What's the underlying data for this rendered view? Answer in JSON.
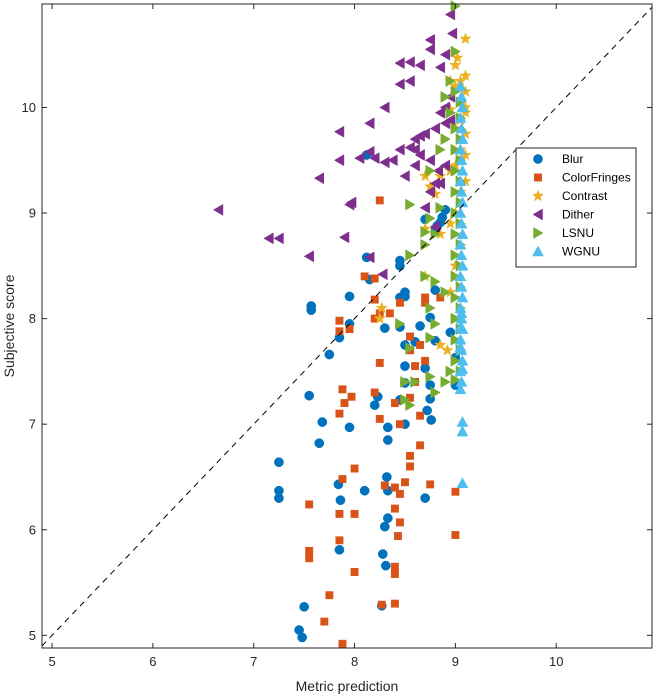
{
  "chart_data": {
    "type": "scatter",
    "xlabel": "Metric prediction",
    "ylabel": "Subjective score",
    "xlim": [
      4.9,
      10.95
    ],
    "ylim": [
      4.88,
      10.98
    ],
    "xticks": [
      5,
      6,
      7,
      8,
      9,
      10
    ],
    "yticks": [
      5,
      6,
      7,
      8,
      9,
      10
    ],
    "grid": false,
    "legend_position": "right",
    "reference_line": "y = x (dashed)",
    "series": [
      {
        "name": "Blur",
        "color": "#0072BD",
        "marker": "circle",
        "points": [
          [
            7.48,
            4.98
          ],
          [
            7.45,
            5.05
          ],
          [
            7.5,
            5.27
          ],
          [
            8.27,
            5.28
          ],
          [
            8.31,
            5.66
          ],
          [
            8.28,
            5.77
          ],
          [
            7.85,
            5.81
          ],
          [
            8.3,
            6.03
          ],
          [
            8.33,
            6.11
          ],
          [
            7.86,
            6.28
          ],
          [
            7.25,
            6.3
          ],
          [
            7.25,
            6.37
          ],
          [
            7.84,
            6.43
          ],
          [
            8.1,
            6.37
          ],
          [
            8.33,
            6.37
          ],
          [
            8.32,
            6.5
          ],
          [
            8.7,
            6.3
          ],
          [
            7.25,
            6.64
          ],
          [
            7.65,
            6.82
          ],
          [
            8.33,
            6.85
          ],
          [
            7.68,
            7.02
          ],
          [
            7.95,
            6.97
          ],
          [
            8.33,
            6.97
          ],
          [
            8.5,
            7.0
          ],
          [
            8.76,
            7.04
          ],
          [
            7.55,
            7.27
          ],
          [
            8.2,
            7.18
          ],
          [
            8.23,
            7.26
          ],
          [
            8.45,
            7.23
          ],
          [
            8.72,
            7.13
          ],
          [
            8.75,
            7.24
          ],
          [
            8.5,
            7.39
          ],
          [
            8.75,
            7.37
          ],
          [
            9.0,
            7.37
          ],
          [
            9.0,
            7.63
          ],
          [
            8.7,
            7.53
          ],
          [
            7.75,
            7.66
          ],
          [
            8.5,
            7.55
          ],
          [
            8.5,
            7.75
          ],
          [
            8.6,
            7.78
          ],
          [
            8.8,
            7.79
          ],
          [
            7.85,
            7.82
          ],
          [
            8.3,
            7.91
          ],
          [
            8.45,
            7.92
          ],
          [
            8.65,
            7.93
          ],
          [
            8.75,
            8.01
          ],
          [
            8.95,
            7.87
          ],
          [
            7.95,
            7.95
          ],
          [
            7.57,
            8.08
          ],
          [
            7.57,
            8.12
          ],
          [
            7.95,
            8.21
          ],
          [
            8.45,
            8.2
          ],
          [
            8.5,
            8.21
          ],
          [
            8.5,
            8.25
          ],
          [
            8.8,
            8.27
          ],
          [
            8.15,
            8.37
          ],
          [
            8.45,
            8.5
          ],
          [
            8.45,
            8.55
          ],
          [
            8.12,
            8.58
          ],
          [
            8.8,
            8.84
          ],
          [
            8.82,
            8.88
          ],
          [
            8.87,
            8.96
          ],
          [
            8.9,
            9.03
          ],
          [
            8.85,
            8.91
          ],
          [
            8.7,
            8.94
          ],
          [
            8.12,
            9.55
          ]
        ]
      },
      {
        "name": "ColorFringes",
        "color": "#D95319",
        "marker": "square",
        "points": [
          [
            7.88,
            4.92
          ],
          [
            8.4,
            5.3
          ],
          [
            8.27,
            5.29
          ],
          [
            8.4,
            5.58
          ],
          [
            8.4,
            5.65
          ],
          [
            7.7,
            5.13
          ],
          [
            7.75,
            5.38
          ],
          [
            7.55,
            5.73
          ],
          [
            7.55,
            5.8
          ],
          [
            7.55,
            6.24
          ],
          [
            8.0,
            5.6
          ],
          [
            7.85,
            5.9
          ],
          [
            8.43,
            5.94
          ],
          [
            8.45,
            6.07
          ],
          [
            7.85,
            6.15
          ],
          [
            8.0,
            6.15
          ],
          [
            8.4,
            6.2
          ],
          [
            8.45,
            6.34
          ],
          [
            8.3,
            6.42
          ],
          [
            8.4,
            6.4
          ],
          [
            8.5,
            6.45
          ],
          [
            9.0,
            6.36
          ],
          [
            9.0,
            5.95
          ],
          [
            8.75,
            6.43
          ],
          [
            8.0,
            6.58
          ],
          [
            7.88,
            6.48
          ],
          [
            8.55,
            6.6
          ],
          [
            8.55,
            6.7
          ],
          [
            8.65,
            6.8
          ],
          [
            8.25,
            7.05
          ],
          [
            8.45,
            7.0
          ],
          [
            8.65,
            7.08
          ],
          [
            7.85,
            7.1
          ],
          [
            7.9,
            7.2
          ],
          [
            7.97,
            7.26
          ],
          [
            7.88,
            7.33
          ],
          [
            8.2,
            7.3
          ],
          [
            8.4,
            7.2
          ],
          [
            8.55,
            7.25
          ],
          [
            8.6,
            7.4
          ],
          [
            8.6,
            7.55
          ],
          [
            8.7,
            7.6
          ],
          [
            8.25,
            7.58
          ],
          [
            8.55,
            7.7
          ],
          [
            8.65,
            7.75
          ],
          [
            8.55,
            7.83
          ],
          [
            7.85,
            7.88
          ],
          [
            7.95,
            7.9
          ],
          [
            7.85,
            7.98
          ],
          [
            8.2,
            8.0
          ],
          [
            8.25,
            8.05
          ],
          [
            8.2,
            8.18
          ],
          [
            8.35,
            8.05
          ],
          [
            8.45,
            8.15
          ],
          [
            8.7,
            8.15
          ],
          [
            8.7,
            8.2
          ],
          [
            8.85,
            8.2
          ],
          [
            8.2,
            8.38
          ],
          [
            8.1,
            8.4
          ],
          [
            8.25,
            9.12
          ]
        ]
      },
      {
        "name": "Contrast",
        "color": "#EDB120",
        "marker": "star",
        "points": [
          [
            8.25,
            8.0
          ],
          [
            8.27,
            8.1
          ],
          [
            8.7,
            8.4
          ],
          [
            8.85,
            7.75
          ],
          [
            8.92,
            7.7
          ],
          [
            8.95,
            8.25
          ],
          [
            9.0,
            8.5
          ],
          [
            8.85,
            8.8
          ],
          [
            8.95,
            8.9
          ],
          [
            8.7,
            8.85
          ],
          [
            8.8,
            9.18
          ],
          [
            8.75,
            9.25
          ],
          [
            8.7,
            9.35
          ],
          [
            8.85,
            9.35
          ],
          [
            8.95,
            9.4
          ],
          [
            9.0,
            9.45
          ],
          [
            9.05,
            9.5
          ],
          [
            9.1,
            9.55
          ],
          [
            9.05,
            9.6
          ],
          [
            9.1,
            9.75
          ],
          [
            9.0,
            9.8
          ],
          [
            9.05,
            9.88
          ],
          [
            9.1,
            9.95
          ],
          [
            8.95,
            9.98
          ],
          [
            9.1,
            10.0
          ],
          [
            9.05,
            10.05
          ],
          [
            9.1,
            10.15
          ],
          [
            9.0,
            10.2
          ],
          [
            9.05,
            10.25
          ],
          [
            9.1,
            10.3
          ],
          [
            9.0,
            10.4
          ],
          [
            9.02,
            10.47
          ],
          [
            9.1,
            10.65
          ],
          [
            8.95,
            10.25
          ],
          [
            9.05,
            9.2
          ],
          [
            9.1,
            9.3
          ],
          [
            9.0,
            9.0
          ]
        ]
      },
      {
        "name": "Dither",
        "color": "#7E2F8E",
        "marker": "triangle-left",
        "points": [
          [
            6.65,
            9.03
          ],
          [
            7.15,
            8.76
          ],
          [
            7.25,
            8.76
          ],
          [
            7.55,
            8.59
          ],
          [
            7.9,
            8.77
          ],
          [
            8.15,
            8.58
          ],
          [
            8.28,
            8.42
          ],
          [
            7.65,
            9.33
          ],
          [
            7.95,
            9.08
          ],
          [
            7.97,
            9.1
          ],
          [
            7.85,
            9.5
          ],
          [
            8.05,
            9.52
          ],
          [
            8.2,
            9.52
          ],
          [
            8.15,
            9.58
          ],
          [
            8.3,
            9.48
          ],
          [
            8.38,
            9.5
          ],
          [
            8.45,
            9.6
          ],
          [
            8.55,
            9.62
          ],
          [
            8.6,
            9.7
          ],
          [
            8.65,
            9.73
          ],
          [
            8.7,
            9.75
          ],
          [
            8.8,
            9.8
          ],
          [
            8.9,
            9.85
          ],
          [
            8.95,
            9.88
          ],
          [
            8.6,
            9.6
          ],
          [
            8.75,
            9.5
          ],
          [
            8.83,
            9.4
          ],
          [
            8.9,
            9.45
          ],
          [
            8.75,
            9.2
          ],
          [
            8.85,
            9.28
          ],
          [
            8.5,
            9.35
          ],
          [
            8.6,
            9.45
          ],
          [
            8.65,
            9.55
          ],
          [
            7.85,
            9.77
          ],
          [
            8.15,
            9.85
          ],
          [
            8.85,
            9.95
          ],
          [
            8.9,
            10.0
          ],
          [
            8.95,
            10.1
          ],
          [
            8.3,
            10.0
          ],
          [
            8.45,
            10.22
          ],
          [
            8.55,
            10.25
          ],
          [
            8.45,
            10.42
          ],
          [
            8.55,
            10.43
          ],
          [
            8.65,
            10.4
          ],
          [
            8.75,
            10.64
          ],
          [
            8.75,
            10.55
          ],
          [
            8.85,
            10.38
          ],
          [
            8.9,
            10.5
          ],
          [
            8.97,
            10.7
          ],
          [
            8.95,
            10.88
          ],
          [
            8.8,
            9.28
          ],
          [
            8.7,
            9.05
          ],
          [
            8.8,
            8.87
          ]
        ]
      },
      {
        "name": "LSNU",
        "color": "#77AC30",
        "marker": "triangle-right",
        "points": [
          [
            9.0,
            10.96
          ],
          [
            9.0,
            10.53
          ],
          [
            8.95,
            10.25
          ],
          [
            9.0,
            10.15
          ],
          [
            9.05,
            10.05
          ],
          [
            8.95,
            9.95
          ],
          [
            9.05,
            9.9
          ],
          [
            9.0,
            9.8
          ],
          [
            9.05,
            9.7
          ],
          [
            9.0,
            9.6
          ],
          [
            9.05,
            9.5
          ],
          [
            9.0,
            9.4
          ],
          [
            9.05,
            9.3
          ],
          [
            9.0,
            9.2
          ],
          [
            9.05,
            9.1
          ],
          [
            9.0,
            9.0
          ],
          [
            9.05,
            8.9
          ],
          [
            9.0,
            8.8
          ],
          [
            9.05,
            8.7
          ],
          [
            9.0,
            8.6
          ],
          [
            9.05,
            8.5
          ],
          [
            9.0,
            8.4
          ],
          [
            9.05,
            8.3
          ],
          [
            9.0,
            8.2
          ],
          [
            9.05,
            8.1
          ],
          [
            9.0,
            8.0
          ],
          [
            9.05,
            7.9
          ],
          [
            9.0,
            7.8
          ],
          [
            9.05,
            7.7
          ],
          [
            9.0,
            7.6
          ],
          [
            9.05,
            7.5
          ],
          [
            9.0,
            7.42
          ],
          [
            8.95,
            7.5
          ],
          [
            8.9,
            7.4
          ],
          [
            8.8,
            7.3
          ],
          [
            8.75,
            7.45
          ],
          [
            8.6,
            7.4
          ],
          [
            8.5,
            7.4
          ],
          [
            8.5,
            7.23
          ],
          [
            8.55,
            7.18
          ],
          [
            8.55,
            7.72
          ],
          [
            8.45,
            7.95
          ],
          [
            8.75,
            7.82
          ],
          [
            8.55,
            8.6
          ],
          [
            8.7,
            8.7
          ],
          [
            8.8,
            8.8
          ],
          [
            8.7,
            8.82
          ],
          [
            8.75,
            8.95
          ],
          [
            8.85,
            9.05
          ],
          [
            8.55,
            9.08
          ],
          [
            8.8,
            8.35
          ],
          [
            8.7,
            8.4
          ],
          [
            8.75,
            8.1
          ],
          [
            8.8,
            7.95
          ],
          [
            8.9,
            8.25
          ],
          [
            8.75,
            9.4
          ],
          [
            8.85,
            9.6
          ],
          [
            8.9,
            9.7
          ],
          [
            8.95,
            9.95
          ],
          [
            8.9,
            10.1
          ]
        ]
      },
      {
        "name": "WGNU",
        "color": "#4DBEEE",
        "marker": "triangle-up",
        "points": [
          [
            9.07,
            6.44
          ],
          [
            9.07,
            6.93
          ],
          [
            9.07,
            7.02
          ],
          [
            9.05,
            7.33
          ],
          [
            9.06,
            7.4
          ],
          [
            9.05,
            7.5
          ],
          [
            9.07,
            7.6
          ],
          [
            9.06,
            7.7
          ],
          [
            9.05,
            7.8
          ],
          [
            9.07,
            7.9
          ],
          [
            9.06,
            8.0
          ],
          [
            9.05,
            8.1
          ],
          [
            9.07,
            8.2
          ],
          [
            9.06,
            8.3
          ],
          [
            9.05,
            8.4
          ],
          [
            9.07,
            8.5
          ],
          [
            9.06,
            8.6
          ],
          [
            9.05,
            8.7
          ],
          [
            9.07,
            8.8
          ],
          [
            9.06,
            8.9
          ],
          [
            9.05,
            9.0
          ],
          [
            9.07,
            9.1
          ],
          [
            9.06,
            9.2
          ],
          [
            9.05,
            9.3
          ],
          [
            9.07,
            9.4
          ],
          [
            9.06,
            9.5
          ],
          [
            9.05,
            9.6
          ],
          [
            9.07,
            9.7
          ],
          [
            9.06,
            9.8
          ],
          [
            9.05,
            9.9
          ],
          [
            9.07,
            10.0
          ],
          [
            9.06,
            10.1
          ],
          [
            9.05,
            10.2
          ],
          [
            9.05,
            7.92
          ],
          [
            9.06,
            8.05
          ],
          [
            9.07,
            7.52
          ],
          [
            9.05,
            7.73
          ]
        ]
      }
    ]
  }
}
